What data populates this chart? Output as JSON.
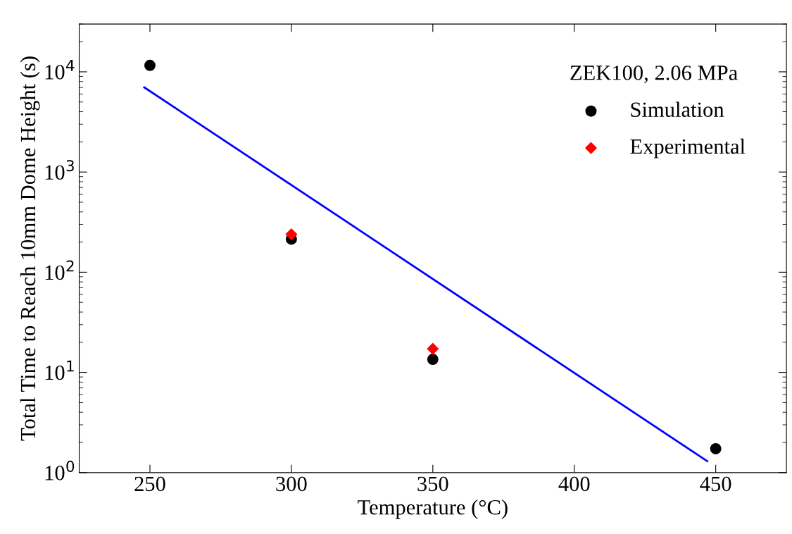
{
  "chart_data": {
    "type": "scatter",
    "xlabel": "Temperature (°C)",
    "ylabel": "Total Time to Reach 10mm Dome Height (s)",
    "legend_title": "ZEK100, 2.06 MPa",
    "legend": "top right",
    "log": "y",
    "grid": false,
    "xlim": [
      225,
      475
    ],
    "xticks": [
      250,
      300,
      350,
      400,
      450
    ],
    "ylim": [
      1,
      30000
    ],
    "yticks": [
      {
        "value": 1,
        "label": "10$^{0}$"
      },
      {
        "value": 10,
        "label": "10$^{1}$"
      },
      {
        "value": 100,
        "label": "10$^{2}$"
      },
      {
        "value": 1000,
        "label": "10$^{3}$"
      },
      {
        "value": 10000,
        "label": "10$^{4}$"
      }
    ],
    "series": [
      {
        "name": "Simulation",
        "color": "#000000",
        "marker": "circle",
        "x": [
          250,
          300,
          350,
          450
        ],
        "values": [
          11600,
          214,
          13.5,
          1.73
        ]
      },
      {
        "name": "Experimental",
        "color": "#ff0000",
        "marker": "diamond",
        "x": [
          300,
          350
        ],
        "values": [
          239,
          17.2
        ]
      },
      {
        "type": "line",
        "color": "#0000ff",
        "marker": "none",
        "line_style": "solid",
        "x": [
          248,
          447
        ],
        "values": [
          7000,
          1.3
        ]
      }
    ]
  }
}
